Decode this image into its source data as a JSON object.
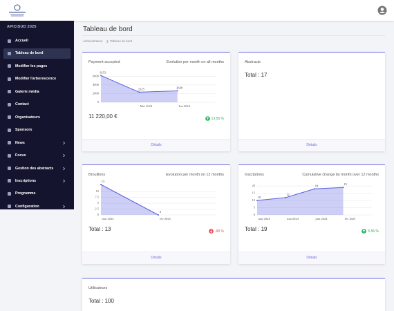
{
  "sidebar": {
    "title": "APICISUD 2025",
    "items": [
      {
        "label": "Accueil"
      },
      {
        "label": "Tableau de bord",
        "active": true
      },
      {
        "label": "Modifier les pages"
      },
      {
        "label": "Modifier l'arborescence"
      },
      {
        "label": "Galerie média"
      },
      {
        "label": "Contact"
      },
      {
        "label": "Organisateurs"
      },
      {
        "label": "Sponsors"
      },
      {
        "label": "News",
        "submenu": true
      },
      {
        "label": "Focus",
        "submenu": true
      },
      {
        "label": "Gestion des abstracts",
        "submenu": true
      },
      {
        "label": "Inscriptions",
        "submenu": true
      },
      {
        "label": "Programme"
      },
      {
        "label": "Configuration",
        "submenu": true
      }
    ]
  },
  "page": {
    "title": "Tableau de bord",
    "breadcrumb": [
      "Administration",
      "Tableau de bord"
    ]
  },
  "cards": [
    {
      "title": "Payment accepted",
      "subtitle": "Evolution per month on all months",
      "chart": {
        "type": "area",
        "color": "#5b5fe0",
        "values": [
          6153,
          2325,
          2640
        ],
        "categories": [
          null,
          "Mar 2024",
          "Jun 2024"
        ],
        "ylim": [
          0,
          7000
        ],
        "yticks": [
          0,
          2000,
          4000,
          6000
        ]
      },
      "total": "11 220,00 €",
      "badge": {
        "text": "13.55 %",
        "direction": "up",
        "color": "#22b55a"
      },
      "footer": "Détails"
    },
    {
      "title": "Abstracts",
      "total": "Total : 17",
      "footer": "Détails"
    },
    {
      "title": "Brouillons",
      "subtitle": "Evolution per month on 12 months",
      "chart": {
        "type": "area",
        "color": "#5b5fe0",
        "values": [
          13,
          0
        ],
        "categories": [
          "mar 2024",
          "fév 2025"
        ],
        "ylim": [
          0,
          13
        ],
        "yticks": [
          0,
          2.5,
          5,
          7.5,
          10
        ]
      },
      "total": "Total : 13",
      "badge": {
        "text": "-90 %",
        "direction": "down",
        "color": "#e5484d"
      },
      "footer": "Détails"
    },
    {
      "title": "Inscriptions",
      "subtitle": "Cumulative change by month over 12 months",
      "chart": {
        "type": "area",
        "color": "#5b5fe0",
        "values": [
          10,
          12,
          18,
          19
        ],
        "categories": [
          "mar 2024",
          "mai 2024",
          "juin 2024",
          "fév 2025"
        ],
        "ylim": [
          0,
          21
        ],
        "yticks": [
          0,
          5,
          10,
          15,
          20
        ]
      },
      "total": "Total : 19",
      "badge": {
        "text": "5.56 %",
        "direction": "up",
        "color": "#22b55a"
      },
      "footer": "Détails"
    },
    {
      "title": "Utilisateurs",
      "total": "Total : 100"
    }
  ]
}
